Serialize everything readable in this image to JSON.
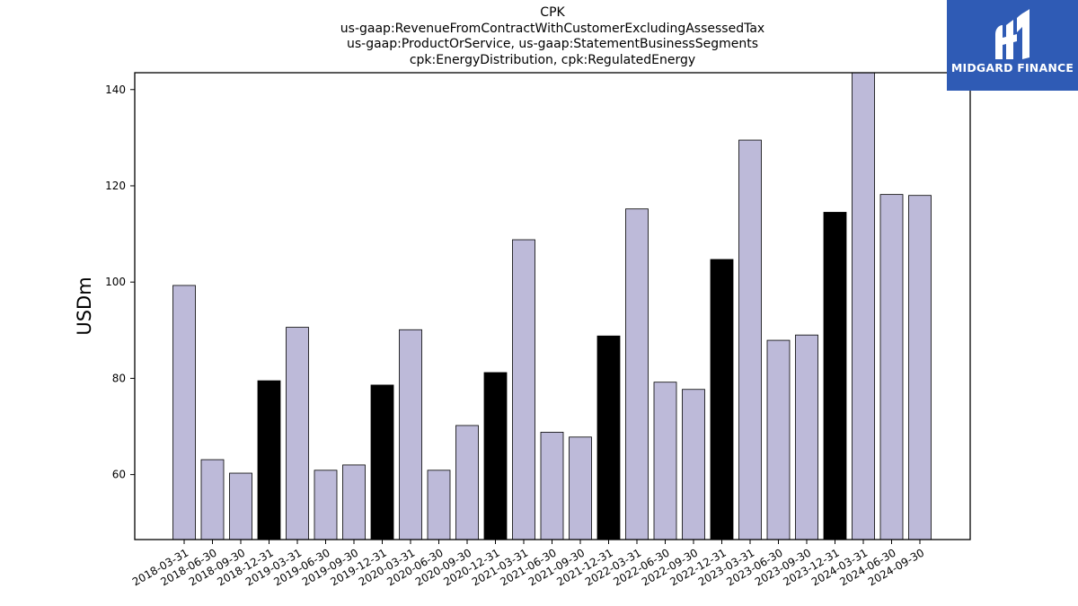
{
  "title_lines": [
    "CPK",
    "us-gaap:RevenueFromContractWithCustomerExcludingAssessedTax",
    "us-gaap:ProductOrService, us-gaap:StatementBusinessSegments",
    "cpk:EnergyDistribution, cpk:RegulatedEnergy"
  ],
  "logo": {
    "text": "MIDGARD FINANCE",
    "icon": "midgard-logo-icon",
    "background": "#2f5bb5"
  },
  "chart_data": {
    "type": "bar",
    "title": "CPK\nus-gaap:RevenueFromContractWithCustomerExcludingAssessedTax\nus-gaap:ProductOrService, us-gaap:StatementBusinessSegments\ncpk:EnergyDistribution, cpk:RegulatedEnergy",
    "xlabel": "",
    "ylabel": "USDm",
    "ylim": [
      46.5,
      143.5
    ],
    "yticks": [
      60,
      80,
      100,
      120,
      140
    ],
    "grid": false,
    "colors": {
      "quarter": "#bdbad9",
      "year_end": "#000000",
      "edge": "#000000"
    },
    "categories": [
      "2018-03-31",
      "2018-06-30",
      "2018-09-30",
      "2018-12-31",
      "2019-03-31",
      "2019-06-30",
      "2019-09-30",
      "2019-12-31",
      "2020-03-31",
      "2020-06-30",
      "2020-09-30",
      "2020-12-31",
      "2021-03-31",
      "2021-06-30",
      "2021-09-30",
      "2021-12-31",
      "2022-03-31",
      "2022-06-30",
      "2022-09-30",
      "2022-12-31",
      "2023-03-31",
      "2023-06-30",
      "2023-09-30",
      "2023-12-31",
      "2024-03-31",
      "2024-06-30",
      "2024-09-30"
    ],
    "values": [
      99.3,
      63.1,
      60.3,
      79.5,
      90.6,
      60.9,
      62.0,
      78.6,
      90.1,
      60.9,
      70.2,
      81.2,
      108.8,
      68.8,
      67.8,
      88.8,
      115.2,
      79.2,
      77.7,
      104.7,
      129.5,
      87.9,
      89.0,
      114.5,
      144.0,
      118.2,
      118.0
    ],
    "year_end_flags": [
      false,
      false,
      false,
      true,
      false,
      false,
      false,
      true,
      false,
      false,
      false,
      true,
      false,
      false,
      false,
      true,
      false,
      false,
      false,
      true,
      false,
      false,
      false,
      true,
      false,
      false,
      false
    ]
  }
}
